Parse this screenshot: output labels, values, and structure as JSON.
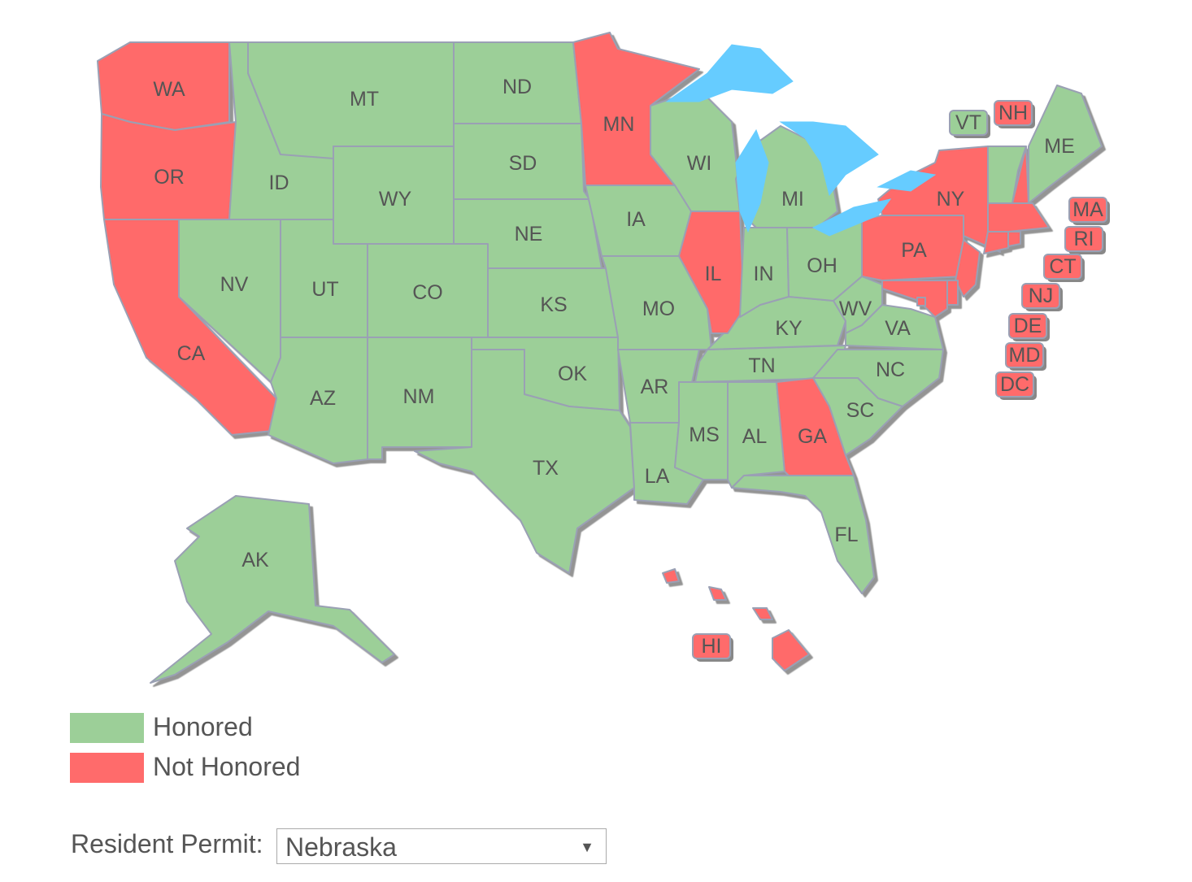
{
  "colors": {
    "honored": "#9ccf98",
    "not_honored": "#ff6b6b",
    "lake": "#66ccff",
    "border": "#9aa0b4"
  },
  "states": {
    "WA": "not_honored",
    "OR": "not_honored",
    "CA": "not_honored",
    "NV": "honored",
    "ID": "honored",
    "MT": "honored",
    "WY": "honored",
    "UT": "honored",
    "CO": "honored",
    "AZ": "honored",
    "NM": "honored",
    "ND": "honored",
    "SD": "honored",
    "NE": "honored",
    "KS": "honored",
    "OK": "honored",
    "TX": "honored",
    "MN": "not_honored",
    "IA": "honored",
    "MO": "honored",
    "AR": "honored",
    "LA": "honored",
    "MS": "honored",
    "AL": "honored",
    "TN": "honored",
    "KY": "honored",
    "IL": "not_honored",
    "WI": "honored",
    "IN": "honored",
    "OH": "honored",
    "MI": "honored",
    "WV": "honored",
    "VA": "honored",
    "NC": "honored",
    "SC": "honored",
    "GA": "not_honored",
    "FL": "honored",
    "PA": "not_honored",
    "NY": "not_honored",
    "VT": "honored",
    "NH": "not_honored",
    "ME": "honored",
    "MA": "not_honored",
    "CT": "not_honored",
    "RI": "not_honored",
    "NJ": "not_honored",
    "DE": "not_honored",
    "MD": "not_honored",
    "DC": "not_honored",
    "AK": "honored",
    "HI": "not_honored"
  },
  "legend": [
    {
      "label": "Honored",
      "status": "honored"
    },
    {
      "label": "Not Honored",
      "status": "not_honored"
    }
  ],
  "resident_permit": {
    "label": "Resident Permit:",
    "selected": "Nebraska",
    "arrow_icon": "triangle-down"
  }
}
